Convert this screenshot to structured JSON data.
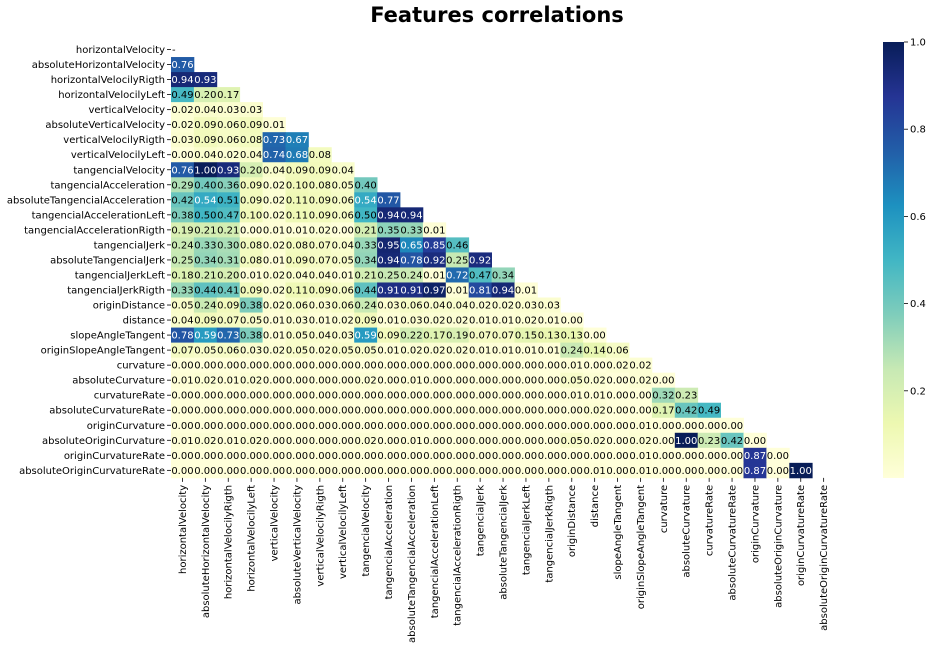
{
  "chart_data": {
    "type": "heatmap",
    "title": "Features correlations",
    "xlabel": "",
    "ylabel": "",
    "mask": "upper-triangle-including-diagonal",
    "labels": [
      "horizontalVelocity",
      "absoluteHorizontalVelocity",
      "horizontalVelocilyRigth",
      "horizontalVelocilyLeft",
      "verticalVelocity",
      "absoluteVerticalVelocity",
      "verticalVelocilyRigth",
      "verticalVelocilyLeft",
      "tangencialVelocity",
      "tangencialAcceleration",
      "absoluteTangencialAcceleration",
      "tangencialAccelerationLeft",
      "tangencialAccelerationRigth",
      "tangencialJerk",
      "absoluteTangencialJerk",
      "tangencialJerkLeft",
      "tangencialJerkRigth",
      "originDistance",
      "distance",
      "slopeAngleTangent",
      "originSlopeAngleTangent",
      "curvature",
      "absoluteCurvature",
      "curvatureRate",
      "absoluteCurvatureRate",
      "originCurvature",
      "absoluteOriginCurvature",
      "originCurvatureRate",
      "absoluteOriginCurvatureRate"
    ],
    "values": [
      [],
      [
        0.76
      ],
      [
        0.94,
        0.93
      ],
      [
        0.49,
        0.2,
        0.17
      ],
      [
        0.02,
        0.04,
        0.03,
        0.03
      ],
      [
        0.02,
        0.09,
        0.06,
        0.09,
        0.01
      ],
      [
        0.03,
        0.09,
        0.06,
        0.08,
        0.73,
        0.67
      ],
      [
        0.0,
        0.04,
        0.02,
        0.04,
        0.74,
        0.68,
        0.08
      ],
      [
        0.76,
        1.0,
        0.93,
        0.2,
        0.04,
        0.09,
        0.09,
        0.04
      ],
      [
        0.29,
        0.4,
        0.36,
        0.09,
        0.02,
        0.1,
        0.08,
        0.05,
        0.4
      ],
      [
        0.42,
        0.54,
        0.51,
        0.09,
        0.02,
        0.11,
        0.09,
        0.06,
        0.54,
        0.77
      ],
      [
        0.38,
        0.5,
        0.47,
        0.1,
        0.02,
        0.11,
        0.09,
        0.06,
        0.5,
        0.94,
        0.94
      ],
      [
        0.19,
        0.21,
        0.21,
        0.0,
        0.01,
        0.01,
        0.02,
        0.0,
        0.21,
        0.35,
        0.33,
        0.01
      ],
      [
        0.24,
        0.33,
        0.3,
        0.08,
        0.02,
        0.08,
        0.07,
        0.04,
        0.33,
        0.95,
        0.65,
        0.85,
        0.46
      ],
      [
        0.25,
        0.34,
        0.31,
        0.08,
        0.01,
        0.09,
        0.07,
        0.05,
        0.34,
        0.94,
        0.78,
        0.92,
        0.25,
        0.92
      ],
      [
        0.18,
        0.21,
        0.2,
        0.01,
        0.02,
        0.04,
        0.04,
        0.01,
        0.21,
        0.25,
        0.24,
        0.01,
        0.72,
        0.47,
        0.34
      ],
      [
        0.33,
        0.44,
        0.41,
        0.09,
        0.02,
        0.11,
        0.09,
        0.06,
        0.44,
        0.91,
        0.91,
        0.97,
        0.01,
        0.81,
        0.94,
        0.01
      ],
      [
        0.05,
        0.24,
        0.09,
        0.38,
        0.02,
        0.06,
        0.03,
        0.06,
        0.24,
        0.03,
        0.06,
        0.04,
        0.04,
        0.02,
        0.02,
        0.03,
        0.03
      ],
      [
        0.04,
        0.09,
        0.07,
        0.05,
        0.01,
        0.03,
        0.01,
        0.02,
        0.09,
        0.01,
        0.03,
        0.02,
        0.02,
        0.01,
        0.01,
        0.02,
        0.01,
        0.0
      ],
      [
        0.78,
        0.59,
        0.73,
        0.38,
        0.01,
        0.05,
        0.04,
        0.03,
        0.59,
        0.09,
        0.22,
        0.17,
        0.19,
        0.07,
        0.07,
        0.15,
        0.13,
        0.13,
        0.0
      ],
      [
        0.07,
        0.05,
        0.06,
        0.03,
        0.02,
        0.05,
        0.02,
        0.05,
        0.05,
        0.01,
        0.02,
        0.02,
        0.02,
        0.01,
        0.01,
        0.01,
        0.01,
        0.24,
        0.14,
        0.06
      ],
      [
        0.0,
        0.0,
        0.0,
        0.0,
        0.0,
        0.0,
        0.0,
        0.0,
        0.0,
        0.0,
        0.0,
        0.0,
        0.0,
        0.0,
        0.0,
        0.0,
        0.0,
        0.01,
        0.0,
        0.02,
        0.02
      ],
      [
        0.01,
        0.02,
        0.01,
        0.02,
        0.0,
        0.0,
        0.0,
        0.0,
        0.02,
        0.0,
        0.01,
        0.0,
        0.0,
        0.0,
        0.0,
        0.0,
        0.0,
        0.05,
        0.02,
        0.0,
        0.02,
        0.0
      ],
      [
        0.0,
        0.0,
        0.0,
        0.0,
        0.0,
        0.0,
        0.0,
        0.0,
        0.0,
        0.0,
        0.0,
        0.0,
        0.0,
        0.0,
        0.0,
        0.0,
        0.0,
        0.01,
        0.01,
        0.0,
        0.0,
        0.32,
        0.23
      ],
      [
        0.0,
        0.0,
        0.0,
        0.0,
        0.0,
        0.0,
        0.0,
        0.0,
        0.0,
        0.0,
        0.0,
        0.0,
        0.0,
        0.0,
        0.0,
        0.0,
        0.0,
        0.0,
        0.02,
        0.0,
        0.0,
        0.17,
        0.42,
        0.49
      ],
      [
        0.0,
        0.0,
        0.0,
        0.0,
        0.0,
        0.0,
        0.0,
        0.0,
        0.0,
        0.0,
        0.0,
        0.0,
        0.0,
        0.0,
        0.0,
        0.0,
        0.0,
        0.0,
        0.0,
        0.0,
        0.01,
        0.0,
        0.0,
        0.0,
        0.0
      ],
      [
        0.01,
        0.02,
        0.01,
        0.02,
        0.0,
        0.0,
        0.0,
        0.0,
        0.02,
        0.0,
        0.01,
        0.0,
        0.0,
        0.0,
        0.0,
        0.0,
        0.0,
        0.05,
        0.02,
        0.0,
        0.02,
        0.0,
        1.0,
        0.23,
        0.42,
        0.0
      ],
      [
        0.0,
        0.0,
        0.0,
        0.0,
        0.0,
        0.0,
        0.0,
        0.0,
        0.0,
        0.0,
        0.0,
        0.0,
        0.0,
        0.0,
        0.0,
        0.0,
        0.0,
        0.0,
        0.0,
        0.0,
        0.01,
        0.0,
        0.0,
        0.0,
        0.0,
        0.87,
        0.0
      ],
      [
        0.0,
        0.0,
        0.0,
        0.0,
        0.0,
        0.0,
        0.0,
        0.0,
        0.0,
        0.0,
        0.0,
        0.0,
        0.0,
        0.0,
        0.0,
        0.0,
        0.0,
        0.0,
        0.01,
        0.0,
        0.01,
        0.0,
        0.0,
        0.0,
        0.0,
        0.87,
        0.0,
        1.0
      ]
    ],
    "colorbar": {
      "range": [
        0,
        1
      ],
      "ticks": [
        "0.2",
        "0.4",
        "0.6",
        "0.8",
        "1.0"
      ],
      "colormap": "YlGnBu",
      "stops": [
        "#ffffd9",
        "#edf8b1",
        "#c7e9b4",
        "#7fcdbb",
        "#41b6c4",
        "#1d91c0",
        "#225ea8",
        "#253494",
        "#081d58"
      ]
    },
    "diagonal_mark": "-"
  }
}
